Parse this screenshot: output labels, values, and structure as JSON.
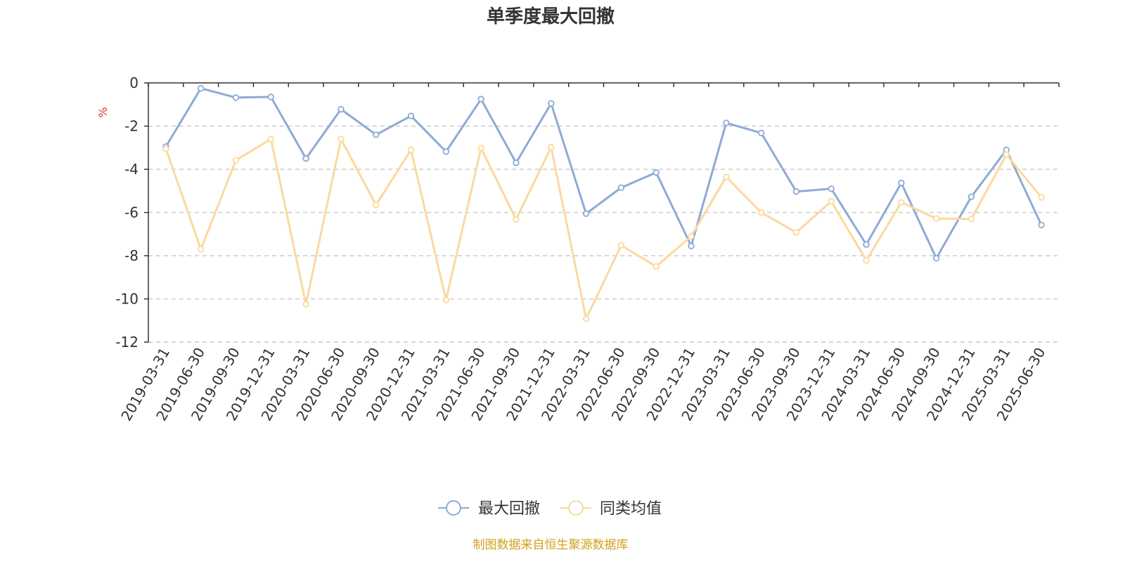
{
  "chart_data": {
    "type": "line",
    "title": "单季度最大回撤",
    "ylabel": "%",
    "ylim": [
      -12,
      0
    ],
    "yticks": [
      0,
      -2,
      -4,
      -6,
      -8,
      -10,
      -12
    ],
    "grid": true,
    "legend_position": "bottom-center",
    "categories": [
      "2019-03-31",
      "2019-06-30",
      "2019-09-30",
      "2019-12-31",
      "2020-03-31",
      "2020-06-30",
      "2020-09-30",
      "2020-12-31",
      "2021-03-31",
      "2021-06-30",
      "2021-09-30",
      "2021-12-31",
      "2022-03-31",
      "2022-06-30",
      "2022-09-30",
      "2022-12-31",
      "2023-03-31",
      "2023-06-30",
      "2023-09-30",
      "2023-12-31",
      "2024-03-31",
      "2024-06-30",
      "2024-09-30",
      "2024-12-31",
      "2025-03-31",
      "2025-06-30"
    ],
    "series": [
      {
        "name": "最大回撤",
        "color": "#8eaad6",
        "values": [
          -2.95,
          -0.25,
          -0.68,
          -0.65,
          -3.5,
          -1.22,
          -2.4,
          -1.53,
          -3.18,
          -0.75,
          -3.7,
          -0.95,
          -6.05,
          -4.85,
          -4.15,
          -7.55,
          -1.85,
          -2.32,
          -5.03,
          -4.9,
          -7.48,
          -4.63,
          -8.12,
          -5.27,
          -3.1,
          -6.58
        ]
      },
      {
        "name": "同类均值",
        "color": "#fbd99d",
        "values": [
          -3.05,
          -7.7,
          -3.58,
          -2.6,
          -10.25,
          -2.6,
          -5.65,
          -3.1,
          -10.05,
          -3.02,
          -6.32,
          -2.98,
          -10.92,
          -7.52,
          -8.5,
          -7.1,
          -4.35,
          -6.0,
          -6.92,
          -5.48,
          -8.22,
          -5.53,
          -6.28,
          -6.3,
          -3.32,
          -5.3
        ]
      }
    ]
  },
  "source": {
    "text": "制图数据来自恒生聚源数据库",
    "color": "#d4a01e"
  },
  "colors": {
    "unit_label": "#e52b2b",
    "axis": "#333333",
    "grid": "#cccccc"
  }
}
